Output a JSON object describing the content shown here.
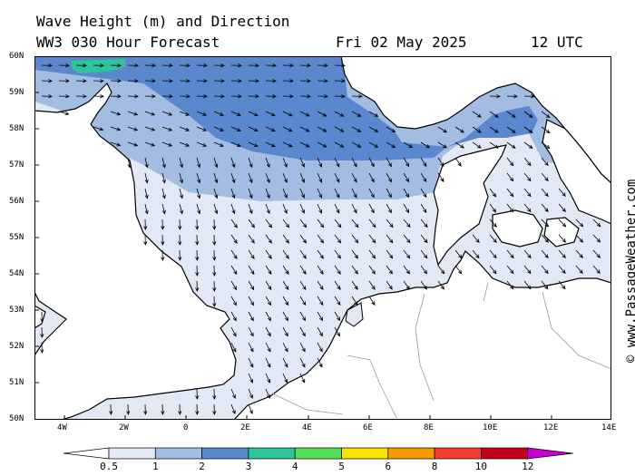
{
  "title": {
    "line1": "Wave Height (m) and Direction",
    "line2": "WW3 030 Hour Forecast",
    "date": "Fri 02 May 2025",
    "time": "12 UTC"
  },
  "credit": "© www.PassageWeather.com",
  "map_axes": {
    "lat_labels": [
      "60N",
      "59N",
      "58N",
      "57N",
      "56N",
      "55N",
      "54N",
      "53N",
      "52N",
      "51N",
      "50N"
    ],
    "lon_labels": [
      "4W",
      "2W",
      "0",
      "2E",
      "4E",
      "6E",
      "8E",
      "10E",
      "12E",
      "14E"
    ]
  },
  "colors": {
    "land": "#ffffff",
    "sea_low": "#e2e8f4",
    "sea_1": "#a3bde2",
    "sea_2": "#5b87cf",
    "sea_3": "#2ec49c",
    "arrow": "#000000",
    "coast": "#000000",
    "border": "#9a9a9a"
  },
  "colorbar": {
    "labels": [
      "0.5",
      "1",
      "2",
      "3",
      "4",
      "5",
      "6",
      "8",
      "10",
      "12"
    ],
    "colors": [
      "#e2e8f4",
      "#a3bde2",
      "#5b87cf",
      "#2ec49c",
      "#55e05a",
      "#f8e400",
      "#f79a00",
      "#ef3d30",
      "#c4001d",
      "#cc00cc"
    ]
  }
}
